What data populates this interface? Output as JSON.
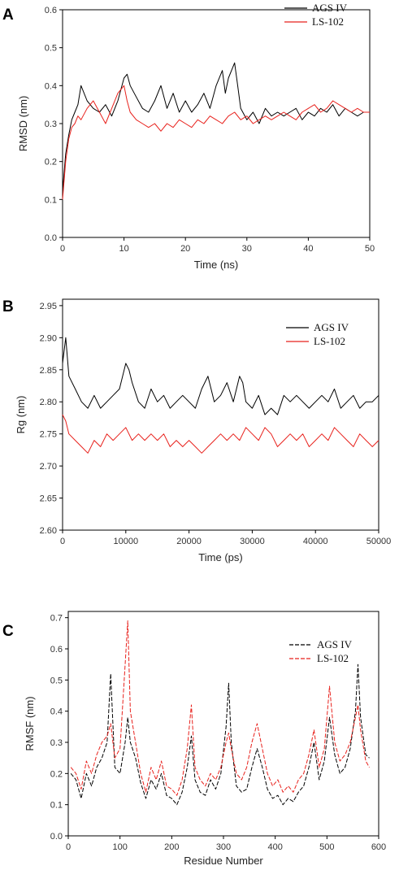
{
  "chart_data": [
    {
      "panel": "A",
      "type": "line",
      "xlabel": "Time (ns)",
      "ylabel": "RMSD (nm)",
      "xlim": [
        0,
        50
      ],
      "ylim": [
        0,
        0.6
      ],
      "xticks": [
        "0",
        "10",
        "20",
        "30",
        "40",
        "50"
      ],
      "yticks": [
        "0.0",
        "0.1",
        "0.2",
        "0.3",
        "0.4",
        "0.5",
        "0.6"
      ],
      "legend": "top-right",
      "series": [
        {
          "name": "AGS IV",
          "color": "#000000",
          "dashed": false,
          "x": [
            0,
            0.5,
            1,
            1.5,
            2,
            2.5,
            3,
            4,
            5,
            6,
            7,
            8,
            9,
            10,
            10.5,
            11,
            12,
            13,
            14,
            15,
            16,
            17,
            18,
            19,
            20,
            21,
            22,
            23,
            24,
            25,
            26,
            26.5,
            27,
            28,
            28.5,
            29,
            30,
            31,
            32,
            33,
            34,
            35,
            36,
            37,
            38,
            39,
            40,
            41,
            42,
            43,
            44,
            45,
            46,
            47,
            48,
            49,
            50
          ],
          "y": [
            0.12,
            0.22,
            0.27,
            0.31,
            0.33,
            0.35,
            0.4,
            0.36,
            0.34,
            0.33,
            0.35,
            0.32,
            0.36,
            0.42,
            0.43,
            0.4,
            0.37,
            0.34,
            0.33,
            0.36,
            0.4,
            0.34,
            0.38,
            0.33,
            0.36,
            0.33,
            0.35,
            0.38,
            0.34,
            0.4,
            0.44,
            0.38,
            0.42,
            0.46,
            0.4,
            0.34,
            0.31,
            0.33,
            0.3,
            0.34,
            0.32,
            0.33,
            0.32,
            0.33,
            0.34,
            0.31,
            0.33,
            0.32,
            0.34,
            0.33,
            0.35,
            0.32,
            0.34,
            0.33,
            0.32,
            0.33,
            0.33
          ]
        },
        {
          "name": "LS-102",
          "color": "#e8211c",
          "dashed": false,
          "x": [
            0,
            0.5,
            1,
            1.5,
            2,
            2.5,
            3,
            4,
            5,
            6,
            7,
            8,
            9,
            10,
            10.5,
            11,
            12,
            13,
            14,
            15,
            16,
            17,
            18,
            19,
            20,
            21,
            22,
            23,
            24,
            25,
            26,
            27,
            28,
            29,
            30,
            31,
            32,
            33,
            34,
            35,
            36,
            37,
            38,
            39,
            40,
            41,
            42,
            43,
            44,
            45,
            46,
            47,
            48,
            49,
            50
          ],
          "y": [
            0.1,
            0.2,
            0.26,
            0.29,
            0.3,
            0.32,
            0.31,
            0.34,
            0.36,
            0.33,
            0.3,
            0.34,
            0.38,
            0.4,
            0.36,
            0.33,
            0.31,
            0.3,
            0.29,
            0.3,
            0.28,
            0.3,
            0.29,
            0.31,
            0.3,
            0.29,
            0.31,
            0.3,
            0.32,
            0.31,
            0.3,
            0.32,
            0.33,
            0.31,
            0.32,
            0.3,
            0.31,
            0.32,
            0.31,
            0.32,
            0.33,
            0.32,
            0.31,
            0.33,
            0.34,
            0.35,
            0.33,
            0.34,
            0.36,
            0.35,
            0.34,
            0.33,
            0.34,
            0.33,
            0.33
          ]
        }
      ]
    },
    {
      "panel": "B",
      "type": "line",
      "xlabel": "Time (ps)",
      "ylabel": "Rg (nm)",
      "xlim": [
        0,
        50000
      ],
      "ylim": [
        2.6,
        2.96
      ],
      "xticks": [
        "0",
        "10000",
        "20000",
        "30000",
        "40000",
        "50000"
      ],
      "yticks": [
        "2.60",
        "2.65",
        "2.70",
        "2.75",
        "2.80",
        "2.85",
        "2.90",
        "2.95"
      ],
      "legend": "top-right",
      "series": [
        {
          "name": "AGS IV",
          "color": "#000000",
          "dashed": false,
          "x": [
            0,
            500,
            1000,
            2000,
            3000,
            4000,
            5000,
            6000,
            7000,
            8000,
            9000,
            10000,
            10500,
            11000,
            12000,
            13000,
            14000,
            15000,
            16000,
            17000,
            18000,
            19000,
            20000,
            21000,
            22000,
            23000,
            24000,
            25000,
            26000,
            27000,
            28000,
            28500,
            29000,
            30000,
            31000,
            32000,
            33000,
            34000,
            35000,
            36000,
            37000,
            38000,
            39000,
            40000,
            41000,
            42000,
            43000,
            44000,
            45000,
            46000,
            47000,
            48000,
            49000,
            50000
          ],
          "y": [
            2.86,
            2.9,
            2.84,
            2.82,
            2.8,
            2.79,
            2.81,
            2.79,
            2.8,
            2.81,
            2.82,
            2.86,
            2.85,
            2.83,
            2.8,
            2.79,
            2.82,
            2.8,
            2.81,
            2.79,
            2.8,
            2.81,
            2.8,
            2.79,
            2.82,
            2.84,
            2.8,
            2.81,
            2.83,
            2.8,
            2.84,
            2.83,
            2.8,
            2.79,
            2.81,
            2.78,
            2.79,
            2.78,
            2.81,
            2.8,
            2.81,
            2.8,
            2.79,
            2.8,
            2.81,
            2.8,
            2.82,
            2.79,
            2.8,
            2.81,
            2.79,
            2.8,
            2.8,
            2.81
          ]
        },
        {
          "name": "LS-102",
          "color": "#e8211c",
          "dashed": false,
          "x": [
            0,
            500,
            1000,
            2000,
            3000,
            4000,
            5000,
            6000,
            7000,
            8000,
            9000,
            10000,
            11000,
            12000,
            13000,
            14000,
            15000,
            16000,
            17000,
            18000,
            19000,
            20000,
            21000,
            22000,
            23000,
            24000,
            25000,
            26000,
            27000,
            28000,
            29000,
            30000,
            31000,
            32000,
            33000,
            34000,
            35000,
            36000,
            37000,
            38000,
            39000,
            40000,
            41000,
            42000,
            43000,
            44000,
            45000,
            46000,
            47000,
            48000,
            49000,
            50000
          ],
          "y": [
            2.78,
            2.77,
            2.75,
            2.74,
            2.73,
            2.72,
            2.74,
            2.73,
            2.75,
            2.74,
            2.75,
            2.76,
            2.74,
            2.75,
            2.74,
            2.75,
            2.74,
            2.75,
            2.73,
            2.74,
            2.73,
            2.74,
            2.73,
            2.72,
            2.73,
            2.74,
            2.75,
            2.74,
            2.75,
            2.74,
            2.76,
            2.75,
            2.74,
            2.76,
            2.75,
            2.73,
            2.74,
            2.75,
            2.74,
            2.75,
            2.73,
            2.74,
            2.75,
            2.74,
            2.76,
            2.75,
            2.74,
            2.73,
            2.75,
            2.74,
            2.73,
            2.74
          ]
        }
      ]
    },
    {
      "panel": "C",
      "type": "line",
      "xlabel": "Residue Number",
      "ylabel": "RMSF (nm)",
      "xlim": [
        0,
        600
      ],
      "ylim": [
        0,
        0.72
      ],
      "xticks": [
        "0",
        "100",
        "200",
        "300",
        "400",
        "500",
        "600"
      ],
      "yticks": [
        "0.0",
        "0.1",
        "0.2",
        "0.3",
        "0.4",
        "0.5",
        "0.6",
        "0.7"
      ],
      "legend": "top-right",
      "series": [
        {
          "name": "AGS IV",
          "color": "#000000",
          "dashed": true,
          "x": [
            5,
            15,
            25,
            35,
            45,
            55,
            65,
            75,
            82,
            90,
            100,
            110,
            115,
            120,
            130,
            140,
            150,
            160,
            170,
            180,
            190,
            200,
            210,
            220,
            230,
            238,
            245,
            255,
            265,
            275,
            285,
            295,
            305,
            310,
            315,
            325,
            335,
            345,
            355,
            365,
            375,
            385,
            395,
            405,
            415,
            425,
            435,
            445,
            455,
            465,
            475,
            485,
            495,
            505,
            515,
            525,
            535,
            545,
            555,
            560,
            565,
            575,
            582
          ],
          "y": [
            0.2,
            0.18,
            0.12,
            0.2,
            0.16,
            0.22,
            0.25,
            0.3,
            0.52,
            0.22,
            0.2,
            0.3,
            0.38,
            0.3,
            0.25,
            0.17,
            0.12,
            0.18,
            0.15,
            0.2,
            0.13,
            0.12,
            0.1,
            0.14,
            0.22,
            0.32,
            0.18,
            0.14,
            0.13,
            0.18,
            0.15,
            0.2,
            0.35,
            0.49,
            0.3,
            0.16,
            0.14,
            0.15,
            0.22,
            0.28,
            0.22,
            0.15,
            0.12,
            0.13,
            0.1,
            0.12,
            0.11,
            0.14,
            0.16,
            0.22,
            0.3,
            0.18,
            0.24,
            0.38,
            0.26,
            0.2,
            0.22,
            0.28,
            0.4,
            0.55,
            0.38,
            0.26,
            0.25
          ]
        },
        {
          "name": "LS-102",
          "color": "#e8211c",
          "dashed": true,
          "x": [
            5,
            15,
            25,
            35,
            45,
            55,
            65,
            75,
            82,
            90,
            100,
            110,
            115,
            120,
            130,
            140,
            150,
            160,
            170,
            180,
            190,
            200,
            210,
            220,
            230,
            238,
            245,
            255,
            265,
            275,
            285,
            295,
            305,
            310,
            315,
            325,
            335,
            345,
            355,
            365,
            375,
            385,
            395,
            405,
            415,
            425,
            435,
            445,
            455,
            465,
            475,
            485,
            495,
            505,
            515,
            525,
            535,
            545,
            555,
            560,
            565,
            575,
            582
          ],
          "y": [
            0.22,
            0.2,
            0.15,
            0.24,
            0.2,
            0.26,
            0.3,
            0.32,
            0.36,
            0.25,
            0.28,
            0.55,
            0.69,
            0.4,
            0.3,
            0.2,
            0.14,
            0.22,
            0.18,
            0.24,
            0.16,
            0.15,
            0.13,
            0.18,
            0.28,
            0.42,
            0.22,
            0.18,
            0.16,
            0.2,
            0.18,
            0.22,
            0.3,
            0.33,
            0.28,
            0.2,
            0.18,
            0.22,
            0.3,
            0.36,
            0.28,
            0.2,
            0.16,
            0.18,
            0.14,
            0.16,
            0.14,
            0.18,
            0.2,
            0.26,
            0.34,
            0.22,
            0.28,
            0.48,
            0.3,
            0.24,
            0.26,
            0.3,
            0.38,
            0.42,
            0.34,
            0.24,
            0.22
          ]
        }
      ]
    }
  ]
}
